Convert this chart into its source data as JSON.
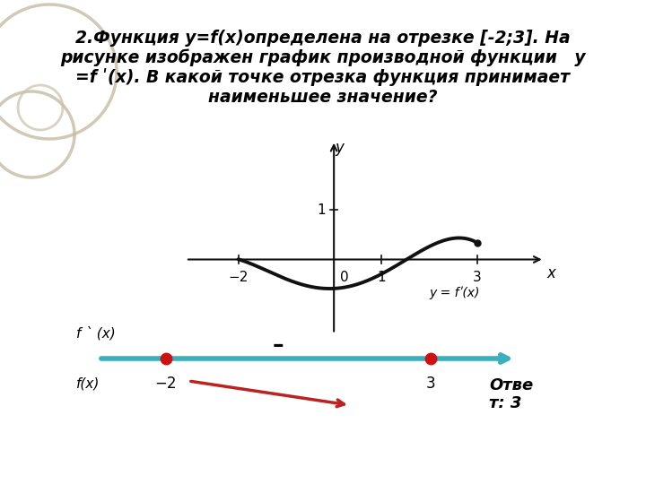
{
  "title_text": "2.Функция у=f(x)определена на отрезке [-2;3]. На\nрисунке изображен график производной функции   у\n=f ʹ(x). В какой точке отрезка функция принимает\nнаименьшее значение?",
  "bg_color": "#ffffff",
  "curve_color": "#111111",
  "axis_color": "#111111",
  "teal_color": "#3aafbe",
  "dot_color": "#cc1111",
  "red_arrow_color": "#bb2222",
  "deco_color": "#c8c0a8",
  "graph_xlim": [
    -3.2,
    4.5
  ],
  "graph_ylim": [
    -1.6,
    2.5
  ],
  "x_ticks": [
    -2,
    1,
    3
  ],
  "y_tick": 1,
  "answer": "Ответ: 3"
}
